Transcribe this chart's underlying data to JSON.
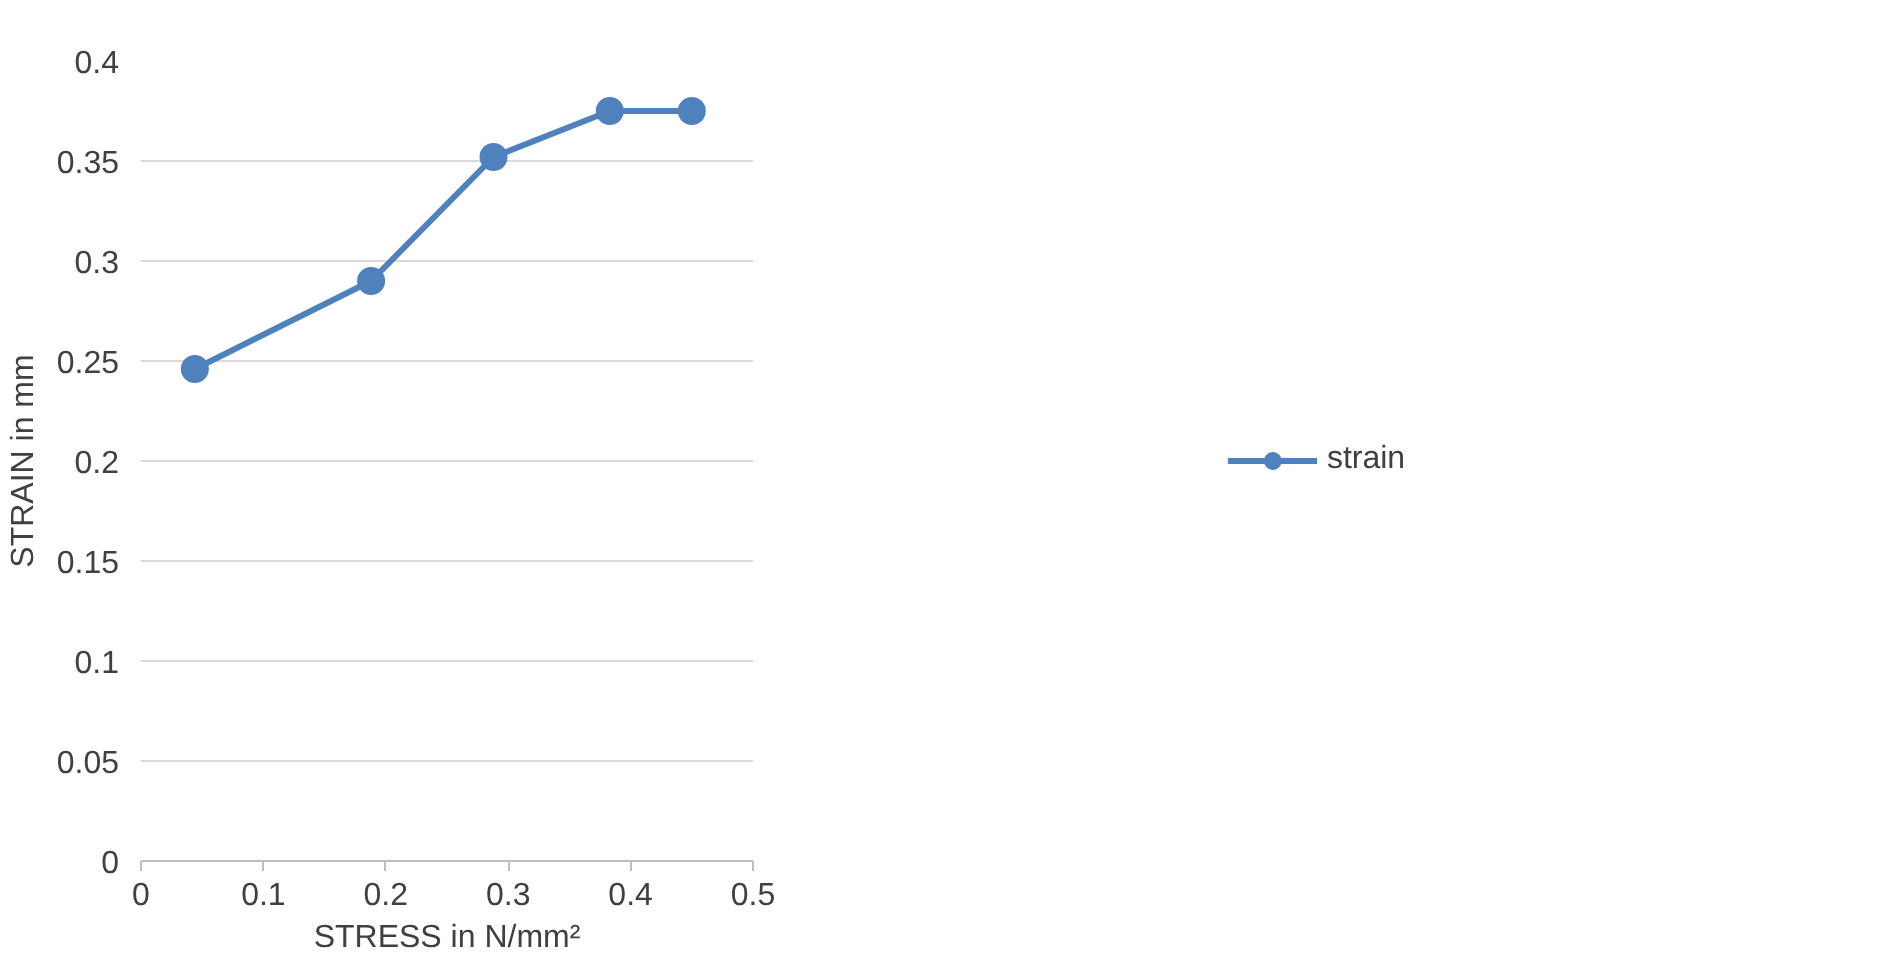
{
  "chart_data": {
    "type": "line",
    "xlabel": "STRESS in N/mm²",
    "ylabel": "STRAIN in mm",
    "x": [
      0.044,
      0.188,
      0.288,
      0.383,
      0.45
    ],
    "series": [
      {
        "name": "strain",
        "color": "#4f81bd",
        "values": [
          0.246,
          0.29,
          0.352,
          0.375,
          0.375
        ]
      }
    ],
    "xlim": [
      0,
      0.5
    ],
    "xticks": [
      0,
      0.1,
      0.2,
      0.3,
      0.4,
      0.5
    ],
    "ylim": [
      0,
      0.4
    ],
    "yticks": [
      0,
      0.05,
      0.1,
      0.15,
      0.2,
      0.25,
      0.3,
      0.35,
      0.4
    ],
    "grid": "y",
    "legend": "right",
    "marker": "circle",
    "line_style": "solid"
  }
}
